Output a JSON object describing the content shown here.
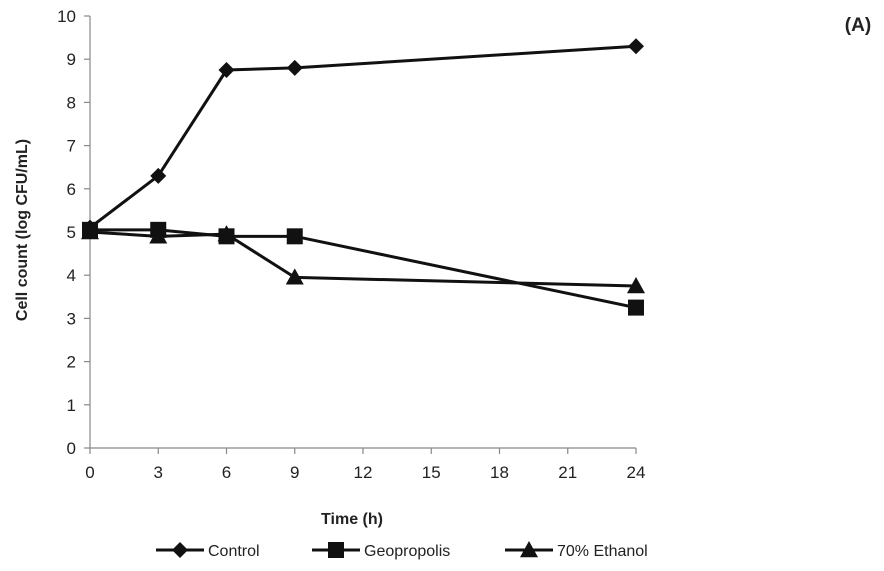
{
  "chart_data": {
    "type": "line",
    "panel_label": "(A)",
    "title": "",
    "xlabel": "Time (h)",
    "ylabel": "Cell count (log CFU/mL)",
    "x": [
      0,
      3,
      6,
      9,
      24
    ],
    "x_ticks": [
      0,
      3,
      6,
      9,
      12,
      15,
      18,
      21,
      24
    ],
    "y_ticks": [
      0,
      1,
      2,
      3,
      4,
      5,
      6,
      7,
      8,
      9,
      10
    ],
    "xlim": [
      0,
      24
    ],
    "ylim": [
      0,
      10
    ],
    "grid": false,
    "legend_position": "bottom",
    "series": [
      {
        "name": "Control",
        "marker": "diamond",
        "values": [
          5.1,
          6.3,
          8.75,
          8.8,
          9.3
        ]
      },
      {
        "name": "Geopropolis",
        "marker": "square",
        "values": [
          5.05,
          5.05,
          4.9,
          4.9,
          3.25
        ]
      },
      {
        "name": "70% Ethanol",
        "marker": "triangle",
        "values": [
          5.0,
          4.9,
          4.95,
          3.95,
          3.75
        ]
      }
    ],
    "colors": {
      "line": "#111111",
      "axis": "#888888",
      "text": "#222222"
    }
  }
}
